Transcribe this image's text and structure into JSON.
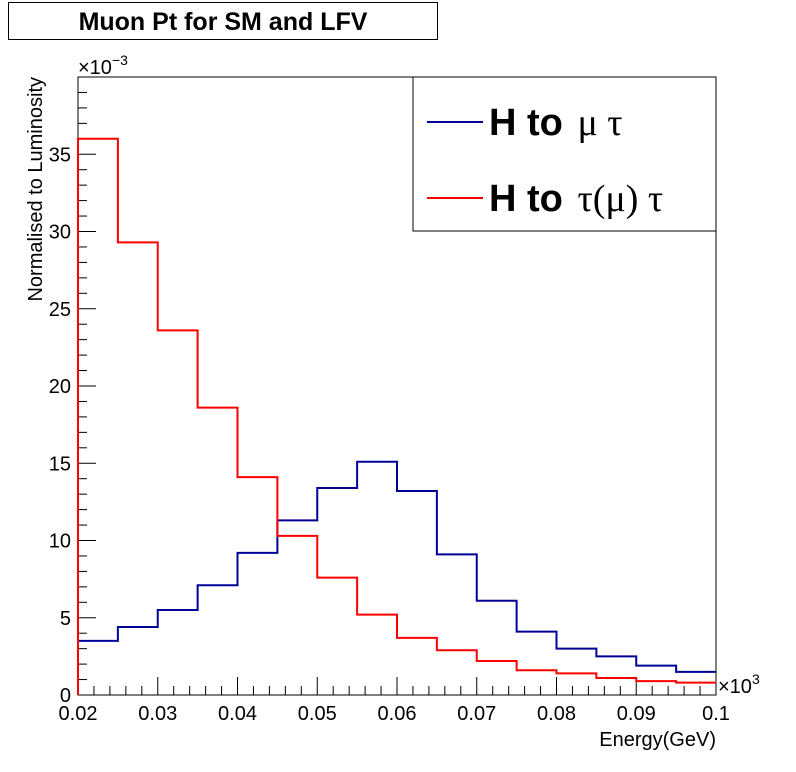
{
  "chart_data": {
    "type": "step",
    "title": "Muon Pt for SM and LFV",
    "xlabel": "Energy(GeV)",
    "ylabel": "Normalised to Luminosity",
    "x_multiplier": "×10",
    "x_multiplier_exp": "3",
    "y_multiplier": "×10",
    "y_multiplier_exp": "−3",
    "xlim": [
      0.02,
      0.1
    ],
    "ylim": [
      0,
      40
    ],
    "x_ticks": [
      "0.02",
      "0.03",
      "0.04",
      "0.05",
      "0.06",
      "0.07",
      "0.08",
      "0.09",
      "0.1"
    ],
    "y_ticks": [
      "0",
      "5",
      "10",
      "15",
      "20",
      "25",
      "30",
      "35"
    ],
    "bin_edges": [
      0.02,
      0.025,
      0.03,
      0.035,
      0.04,
      0.045,
      0.05,
      0.055,
      0.06,
      0.065,
      0.07,
      0.075,
      0.08,
      0.085,
      0.09,
      0.095,
      0.1
    ],
    "legend_position": "top-right",
    "series": [
      {
        "name": "H to μ τ",
        "legend_prefix": "H to ",
        "legend_greek": "μ  τ",
        "color": "#000099",
        "values": [
          3.5,
          4.4,
          5.5,
          7.1,
          9.2,
          11.3,
          13.4,
          15.1,
          13.2,
          9.1,
          6.1,
          4.1,
          3.0,
          2.5,
          1.9,
          1.5
        ]
      },
      {
        "name": "H to τ(μ) τ",
        "legend_prefix": "H to ",
        "legend_greek": "τ(μ)  τ",
        "color": "#ff0000",
        "values": [
          36.0,
          29.3,
          23.6,
          18.6,
          14.1,
          10.3,
          7.6,
          5.2,
          3.7,
          2.9,
          2.2,
          1.6,
          1.4,
          1.1,
          0.9,
          0.8
        ]
      }
    ]
  }
}
